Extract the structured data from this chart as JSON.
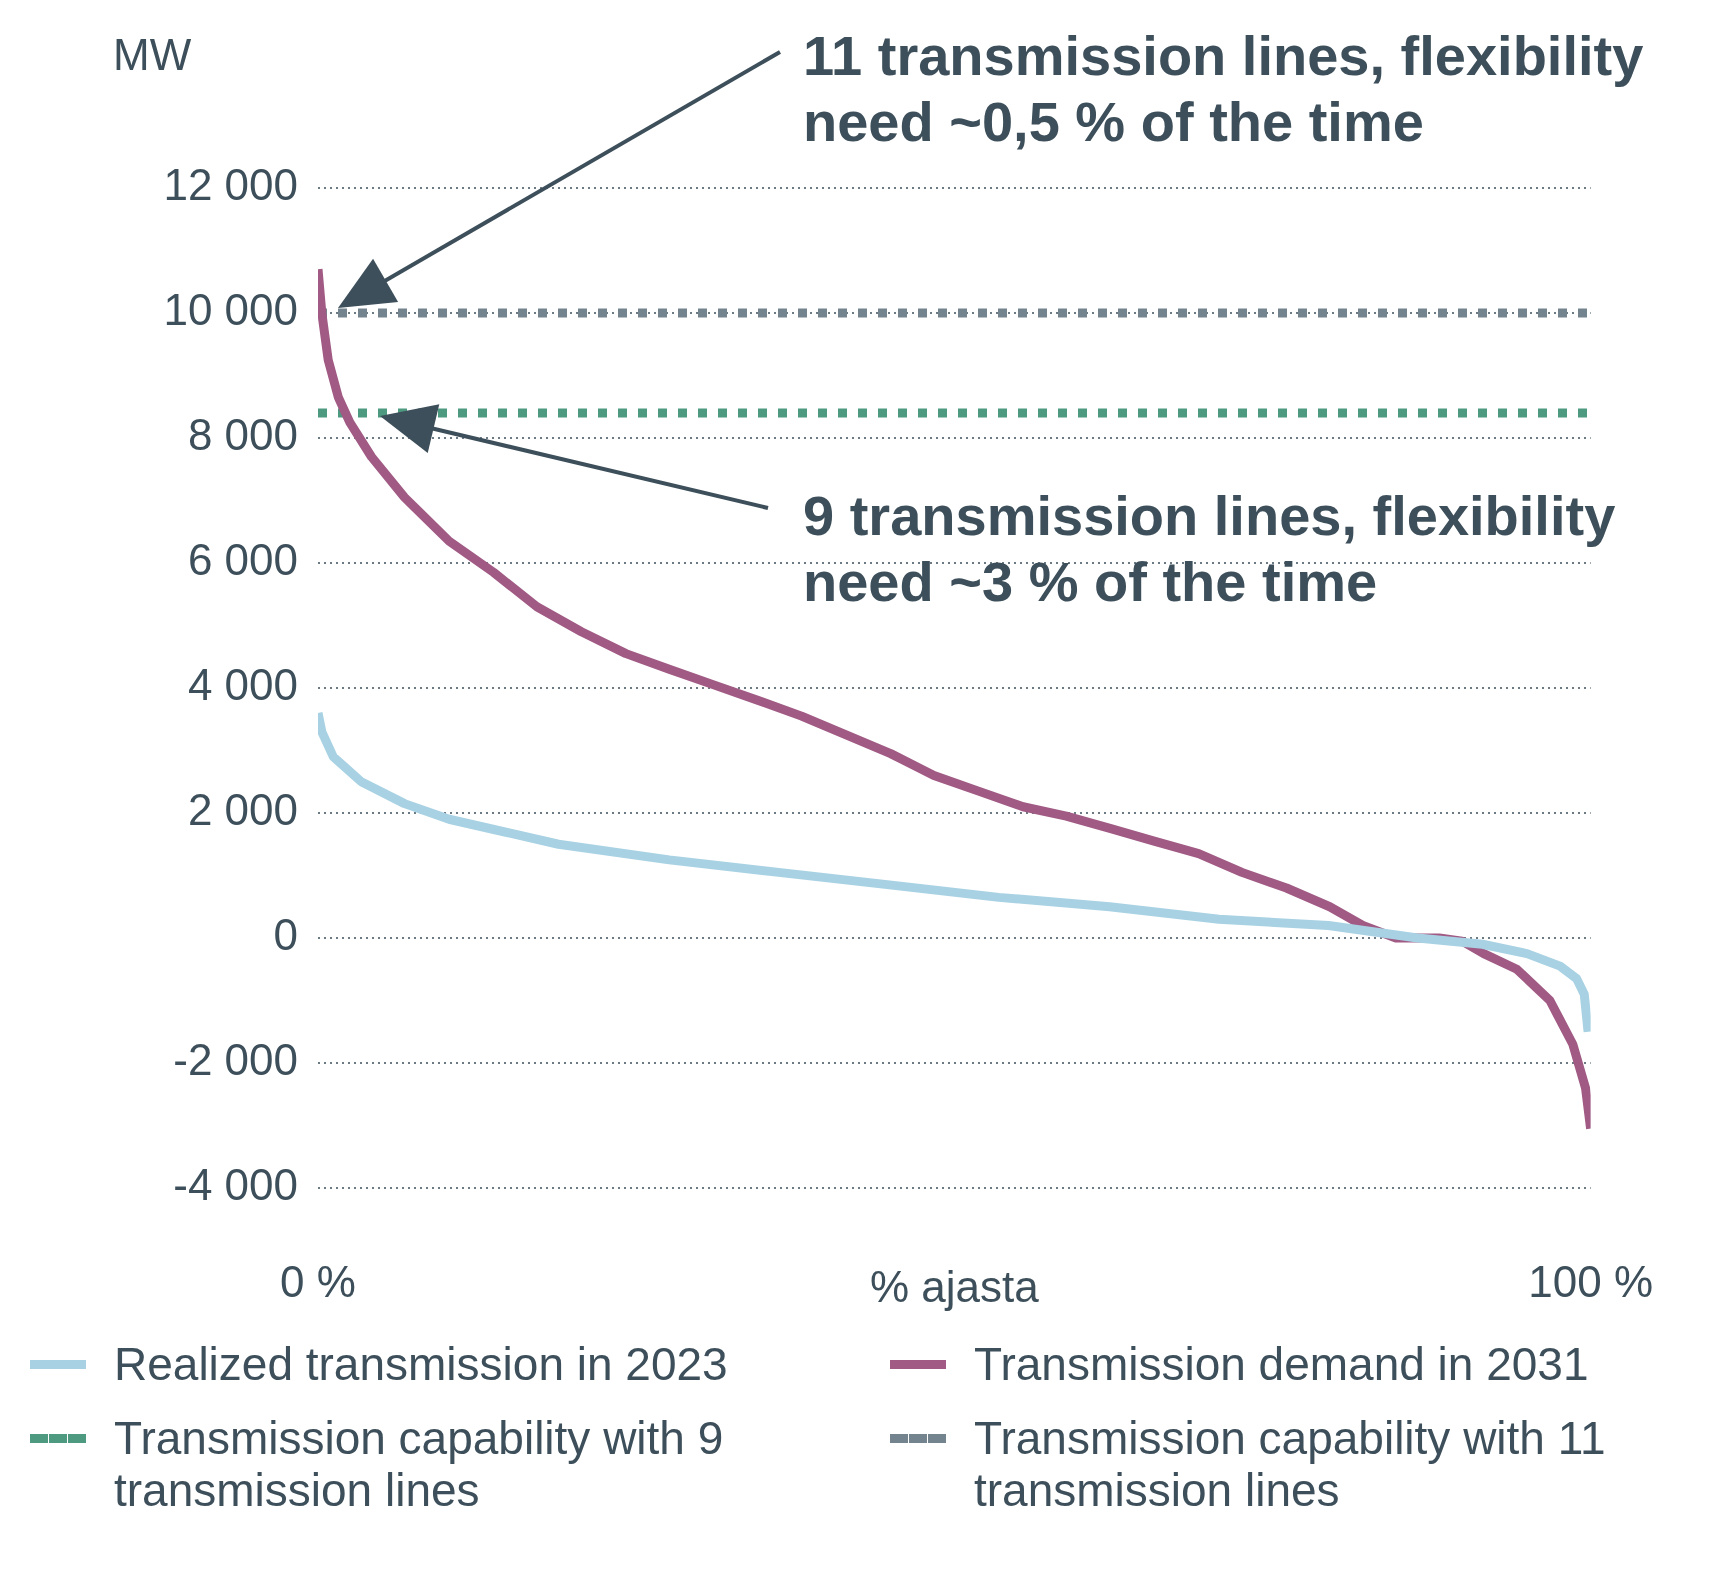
{
  "chart_data": {
    "type": "line",
    "ylabel": "MW",
    "xlabel": "% ajasta",
    "xlim": [
      0,
      100
    ],
    "xticks": [
      {
        "value": 0,
        "label": "0 %"
      },
      {
        "value": 100,
        "label": "100 %"
      }
    ],
    "ylim": [
      -4000,
      12000
    ],
    "yticks": [
      {
        "value": -4000,
        "label": "-4 000"
      },
      {
        "value": -2000,
        "label": "-2 000"
      },
      0,
      {
        "value": 2000,
        "label": "2 000"
      },
      {
        "value": 4000,
        "label": "4 000"
      },
      {
        "value": 6000,
        "label": "6 000"
      },
      {
        "value": 8000,
        "label": "8 000"
      },
      {
        "value": 10000,
        "label": "10 000"
      },
      {
        "value": 12000,
        "label": "12 000"
      }
    ],
    "grid": "y",
    "legend": "bottom",
    "marker": "none",
    "annotations": [
      "11 transmission lines, flexibility need ~0,5 % of the time",
      "9 transmission lines, flexibility need ~3 % of the time"
    ],
    "series": [
      {
        "name": "Realized transmission in 2023",
        "color": "#a8d2e3",
        "line_style": "solid",
        "x": [
          0,
          0.3,
          1.2,
          3.4,
          6.8,
          10.3,
          14.6,
          18.9,
          27.6,
          36.2,
          44.9,
          53.5,
          62.2,
          70.8,
          79.4,
          86.4,
          91.5,
          95,
          97.6,
          98.9,
          99.5,
          99.8
        ],
        "values": [
          3600,
          3300,
          2900,
          2500,
          2150,
          1900,
          1700,
          1500,
          1250,
          1050,
          850,
          650,
          500,
          300,
          200,
          0,
          -100,
          -250,
          -450,
          -650,
          -900,
          -1500
        ]
      },
      {
        "name": "Transmission demand in 2031",
        "color": "#a05a84",
        "line_style": "solid",
        "x": [
          0,
          0.3,
          0.8,
          1.6,
          2.5,
          4.2,
          6.8,
          10.3,
          13.8,
          17.2,
          20.7,
          24.2,
          27.6,
          31.1,
          34.6,
          38,
          41.5,
          45,
          48.4,
          51.9,
          55.4,
          58.8,
          62.3,
          65.7,
          69.2,
          72.6,
          76.1,
          79.5,
          82.1,
          84.7,
          88.1,
          89.9,
          91.6,
          94.2,
          96.8,
          98.6,
          99.6,
          100
        ],
        "values": [
          10700,
          10000,
          9250,
          8650,
          8250,
          7700,
          7050,
          6350,
          5850,
          5300,
          4900,
          4550,
          4300,
          4050,
          3800,
          3550,
          3250,
          2950,
          2600,
          2350,
          2100,
          1950,
          1750,
          1550,
          1350,
          1050,
          800,
          500,
          200,
          0,
          0,
          -50,
          -250,
          -500,
          -1000,
          -1700,
          -2400,
          -3050
        ]
      },
      {
        "name": "Transmission capability with 9 transmission lines",
        "color": "#4e9a80",
        "line_style": "dotted",
        "x": [
          0,
          100
        ],
        "values": [
          8400,
          8400
        ]
      },
      {
        "name": "Transmission capability with 11 transmission lines",
        "color": "#74848e",
        "line_style": "dotted",
        "x": [
          0,
          100
        ],
        "values": [
          10000,
          10000
        ]
      }
    ]
  }
}
